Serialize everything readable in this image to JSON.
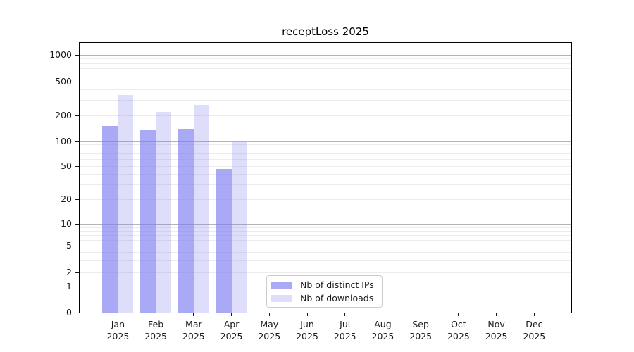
{
  "chart_data": {
    "type": "bar",
    "title": "receptLoss 2025",
    "year": "2025",
    "categories": [
      "Jan",
      "Feb",
      "Mar",
      "Apr",
      "May",
      "Jun",
      "Jul",
      "Aug",
      "Sep",
      "Oct",
      "Nov",
      "Dec"
    ],
    "series": [
      {
        "name": "Nb of distinct IPs",
        "color": "rgba(125,125,240,0.66)",
        "values": [
          150,
          135,
          140,
          46,
          0,
          0,
          0,
          0,
          0,
          0,
          0,
          0
        ]
      },
      {
        "name": "Nb of downloads",
        "color": "rgba(125,125,240,0.25)",
        "values": [
          345,
          220,
          265,
          100,
          0,
          0,
          0,
          0,
          0,
          0,
          0,
          0
        ]
      }
    ],
    "yscale": "symlog",
    "yticks": [
      0,
      1,
      2,
      5,
      10,
      20,
      50,
      100,
      200,
      500,
      1000
    ],
    "minor_gridlines": [
      2,
      3,
      4,
      5,
      6,
      7,
      8,
      9,
      20,
      30,
      40,
      50,
      60,
      70,
      80,
      90,
      200,
      300,
      400,
      500,
      600,
      700,
      800,
      900
    ],
    "major_gridlines": [
      1,
      10,
      100,
      1000
    ],
    "ylim": [
      0,
      1400
    ],
    "xlabel": "",
    "ylabel": "",
    "grid": "horizontal major+minor",
    "legend_position": "lower center"
  }
}
